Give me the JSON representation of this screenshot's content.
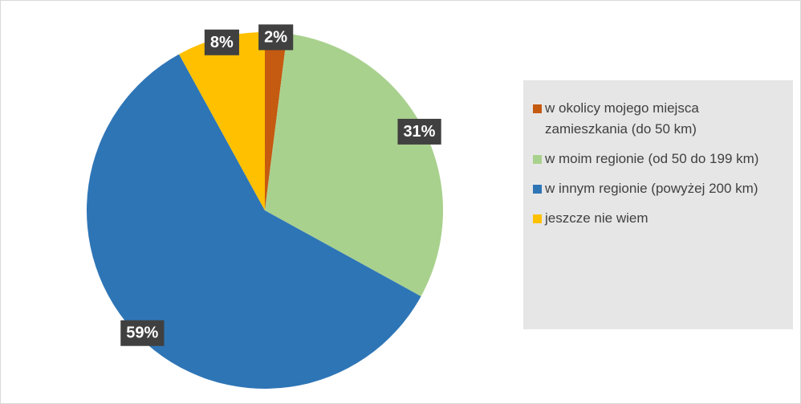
{
  "chart_data": {
    "type": "pie",
    "categories": [
      "w okolicy mojego miejsca zamieszkania (do 50 km)",
      "w moim regionie (od 50 do 199 km)",
      "w innym regionie (powyżej 200 km)",
      "jeszcze nie wiem"
    ],
    "values": [
      2,
      31,
      59,
      8
    ],
    "value_labels": [
      "2%",
      "31%",
      "59%",
      "8%"
    ],
    "colors": [
      "#c55a11",
      "#a9d18e",
      "#2e75b6",
      "#ffc000"
    ],
    "legend": "right"
  }
}
